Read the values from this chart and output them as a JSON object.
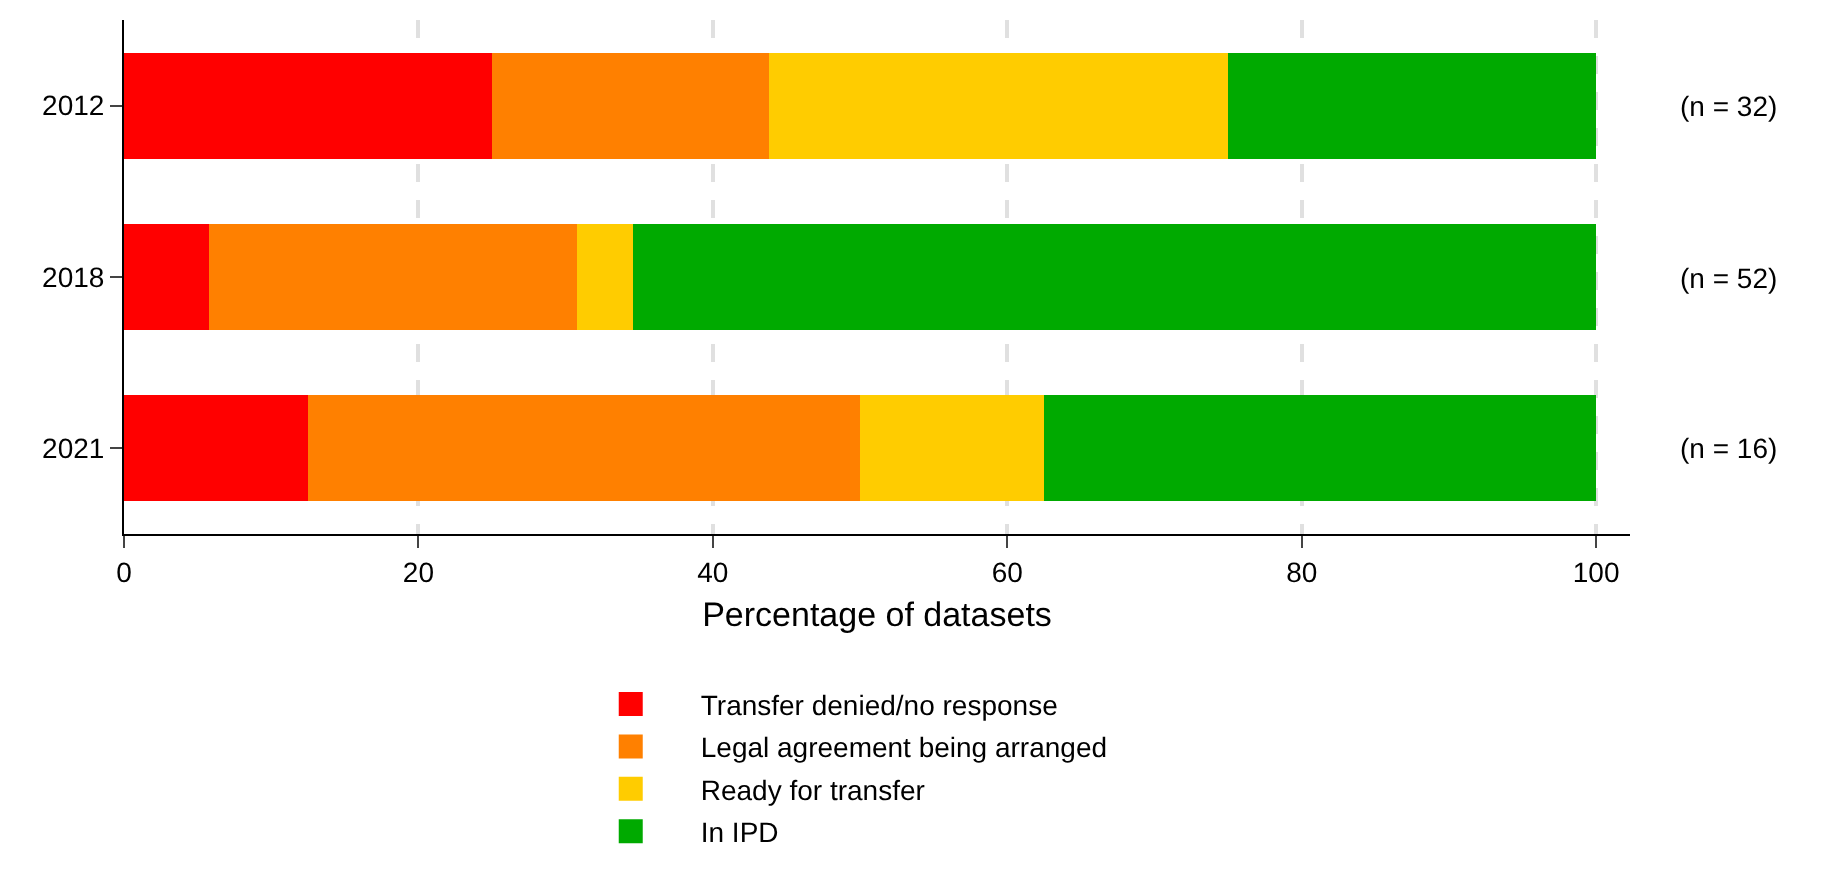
{
  "chart_data": {
    "type": "bar",
    "orientation": "horizontal",
    "stacked": true,
    "xlabel": "Percentage of datasets",
    "categories": [
      "2012",
      "2018",
      "2021"
    ],
    "series": [
      {
        "name": "Transfer denied/no response",
        "color": "#ff0000",
        "values": [
          25,
          5.8,
          12.5
        ]
      },
      {
        "name": "Legal agreement being arranged",
        "color": "#ff8000",
        "values": [
          18.8,
          25,
          37.5
        ]
      },
      {
        "name": "Ready for transfer",
        "color": "#ffcc00",
        "values": [
          31.2,
          3.8,
          12.5
        ]
      },
      {
        "name": "In IPD",
        "color": "#00aa00",
        "values": [
          25,
          65.4,
          37.5
        ]
      }
    ],
    "xlim": [
      0,
      102.3
    ],
    "xticks": [
      0,
      20,
      40,
      60,
      80,
      100
    ],
    "grid": "x",
    "legend": "bottom",
    "annotations": [
      "(n = 32)",
      "(n = 52)",
      "(n = 16)"
    ]
  }
}
